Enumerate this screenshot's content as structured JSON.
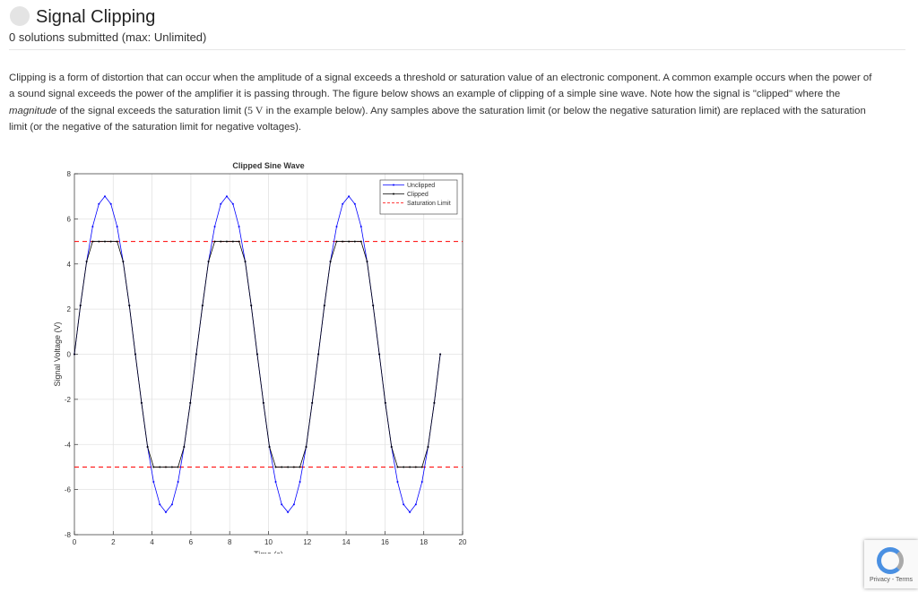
{
  "header": {
    "title": "Signal Clipping",
    "subtitle": "0 solutions submitted (max: Unlimited)"
  },
  "paragraph": {
    "parts": [
      "Clipping is a form of distortion that can occur when the amplitude of a signal exceeds a threshold or saturation value of an electronic component. A common example occurs when the power of a sound signal exceeds the power of the amplifier it is passing through. The figure below shows an example of clipping of a simple sine wave. Note how the signal is \"clipped\" where the ",
      "magnitude",
      " of the signal exceeds the saturation limit (",
      "5 V",
      " in the example below). Any samples above the saturation limit (or below the negative saturation limit) are replaced with the saturation limit (or the negative of the saturation limit for negative voltages)."
    ]
  },
  "chart_data": {
    "type": "line",
    "title": "Clipped Sine Wave",
    "x_label": "Time (s)",
    "y_label": "Signal Voltage (V)",
    "x": [
      0,
      0.31,
      0.63,
      0.94,
      1.26,
      1.57,
      1.88,
      2.2,
      2.51,
      2.83,
      3.14,
      3.46,
      3.77,
      4.08,
      4.4,
      4.71,
      5.03,
      5.34,
      5.65,
      5.97,
      6.28,
      6.6,
      6.91,
      7.23,
      7.54,
      7.85,
      8.17,
      8.48,
      8.8,
      9.11,
      9.42,
      9.74,
      10.05,
      10.37,
      10.68,
      11.0,
      11.31,
      11.62,
      11.94,
      12.25,
      12.57,
      12.88,
      13.19,
      13.51,
      13.82,
      14.14,
      14.45,
      14.77,
      15.08,
      15.39,
      15.71,
      16.02,
      16.34,
      16.65,
      16.96,
      17.28,
      17.59,
      17.91,
      18.22,
      18.54,
      18.85
    ],
    "series": [
      {
        "name": "Unclipped",
        "color": "#0000ff",
        "values": [
          0,
          2.16,
          4.11,
          5.66,
          6.66,
          7,
          6.66,
          5.66,
          4.11,
          2.16,
          0,
          -2.16,
          -4.11,
          -5.66,
          -6.66,
          -7,
          -6.66,
          -5.66,
          -4.11,
          -2.16,
          0,
          2.16,
          4.11,
          5.66,
          6.66,
          7,
          6.66,
          5.66,
          4.11,
          2.16,
          0,
          -2.16,
          -4.11,
          -5.66,
          -6.66,
          -7,
          -6.66,
          -5.66,
          -4.11,
          -2.16,
          0,
          2.16,
          4.11,
          5.66,
          6.66,
          7,
          6.66,
          5.66,
          4.11,
          2.16,
          0,
          -2.16,
          -4.11,
          -5.66,
          -6.66,
          -7,
          -6.66,
          -5.66,
          -4.11,
          -2.16,
          0
        ]
      },
      {
        "name": "Clipped",
        "color": "#000000",
        "values": [
          0,
          2.16,
          4.11,
          5,
          5,
          5,
          5,
          5,
          4.11,
          2.16,
          0,
          -2.16,
          -4.11,
          -5,
          -5,
          -5,
          -5,
          -5,
          -4.11,
          -2.16,
          0,
          2.16,
          4.11,
          5,
          5,
          5,
          5,
          5,
          4.11,
          2.16,
          0,
          -2.16,
          -4.11,
          -5,
          -5,
          -5,
          -5,
          -5,
          -4.11,
          -2.16,
          0,
          2.16,
          4.11,
          5,
          5,
          5,
          5,
          5,
          4.11,
          2.16,
          0,
          -2.16,
          -4.11,
          -5,
          -5,
          -5,
          -5,
          -5,
          -4.11,
          -2.16,
          0
        ]
      }
    ],
    "hlines": [
      {
        "name": "Saturation Limit",
        "color": "#ff0000",
        "values": [
          5,
          -5
        ]
      }
    ],
    "xlim": [
      0,
      20
    ],
    "xticks": [
      0,
      2,
      4,
      6,
      8,
      10,
      12,
      14,
      16,
      18,
      20
    ],
    "ylim": [
      -8,
      8
    ],
    "yticks": [
      -8,
      -6,
      -4,
      -2,
      0,
      2,
      4,
      6,
      8
    ],
    "grid": true,
    "legend": "upper right"
  },
  "recaptcha": {
    "links": "Privacy - Terms"
  }
}
